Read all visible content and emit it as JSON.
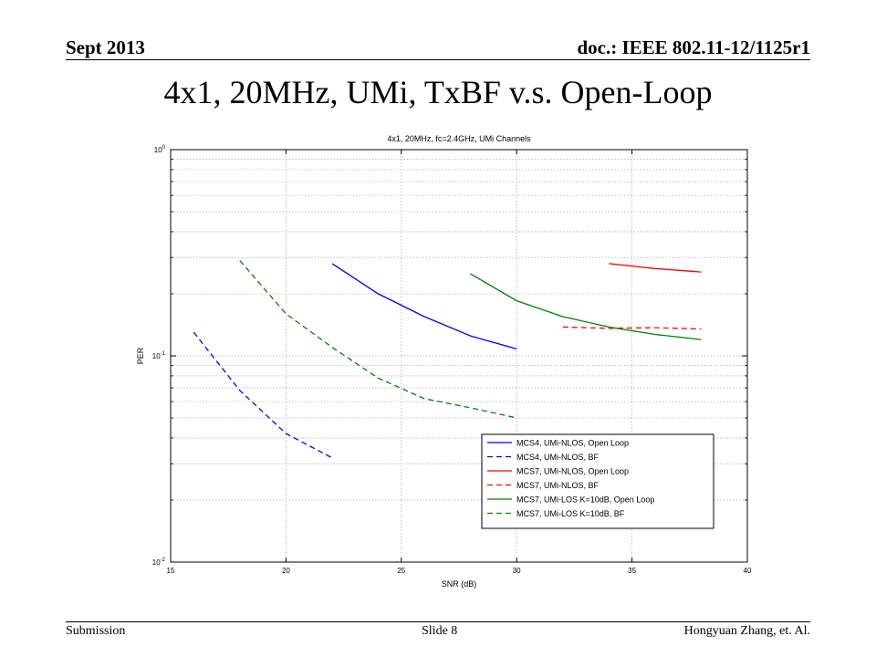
{
  "header": {
    "date": "Sept 2013",
    "doc_id": "doc.: IEEE 802.11-12/1125r1"
  },
  "slide_title": "4x1, 20MHz, UMi, TxBF v.s. Open-Loop",
  "footer": {
    "left": "Submission",
    "center": "Slide 8",
    "right": "Hongyuan Zhang, et. Al."
  },
  "chart_data": {
    "type": "line",
    "title": "4x1, 20MHz, fc=2.4GHz, UMi Channels",
    "xlabel": "SNR (dB)",
    "ylabel": "PER",
    "xlim": [
      15,
      40
    ],
    "ylim": [
      0.01,
      1
    ],
    "yscale": "log",
    "grid": true,
    "legend": "bottom-right",
    "xticks": [
      "15",
      "20",
      "25",
      "30",
      "35",
      "40"
    ],
    "yticks": [
      {
        "base": "10",
        "exp": "-2",
        "value": 0.01
      },
      {
        "base": "10",
        "exp": "-1",
        "value": 0.1
      },
      {
        "base": "10",
        "exp": "0",
        "value": 1
      }
    ],
    "series": [
      {
        "name": "MCS4, UMi-NLOS, Open Loop",
        "color": "#0000ff",
        "dash": "solid",
        "x": [
          22,
          24,
          26,
          28,
          30
        ],
        "y": [
          0.28,
          0.2,
          0.155,
          0.125,
          0.108
        ]
      },
      {
        "name": "MCS4, UMi-NLOS, BF",
        "color": "#0000ff",
        "dash": "dashed",
        "x": [
          16,
          18,
          20,
          22
        ],
        "y": [
          0.13,
          0.068,
          0.042,
          0.032
        ]
      },
      {
        "name": "MCS7, UMi-NLOS, Open Loop",
        "color": "#ff0000",
        "dash": "solid",
        "x": [
          34,
          36,
          38
        ],
        "y": [
          0.28,
          0.265,
          0.255
        ]
      },
      {
        "name": "MCS7, UMi-NLOS, BF",
        "color": "#ff0000",
        "dash": "dashed",
        "x": [
          32,
          34,
          36,
          38
        ],
        "y": [
          0.138,
          0.136,
          0.137,
          0.135
        ]
      },
      {
        "name": "MCS7, UMi-LOS K=10dB, Open Loop",
        "color": "#008000",
        "dash": "solid",
        "x": [
          28,
          30,
          32,
          34,
          36,
          38
        ],
        "y": [
          0.25,
          0.185,
          0.155,
          0.138,
          0.127,
          0.12
        ]
      },
      {
        "name": "MCS7, UMi-LOS K=10dB, BF",
        "color": "#008000",
        "dash": "dashed",
        "x": [
          18,
          20,
          22,
          24,
          26,
          28,
          30
        ],
        "y": [
          0.29,
          0.16,
          0.11,
          0.078,
          0.062,
          0.056,
          0.05
        ]
      }
    ]
  }
}
